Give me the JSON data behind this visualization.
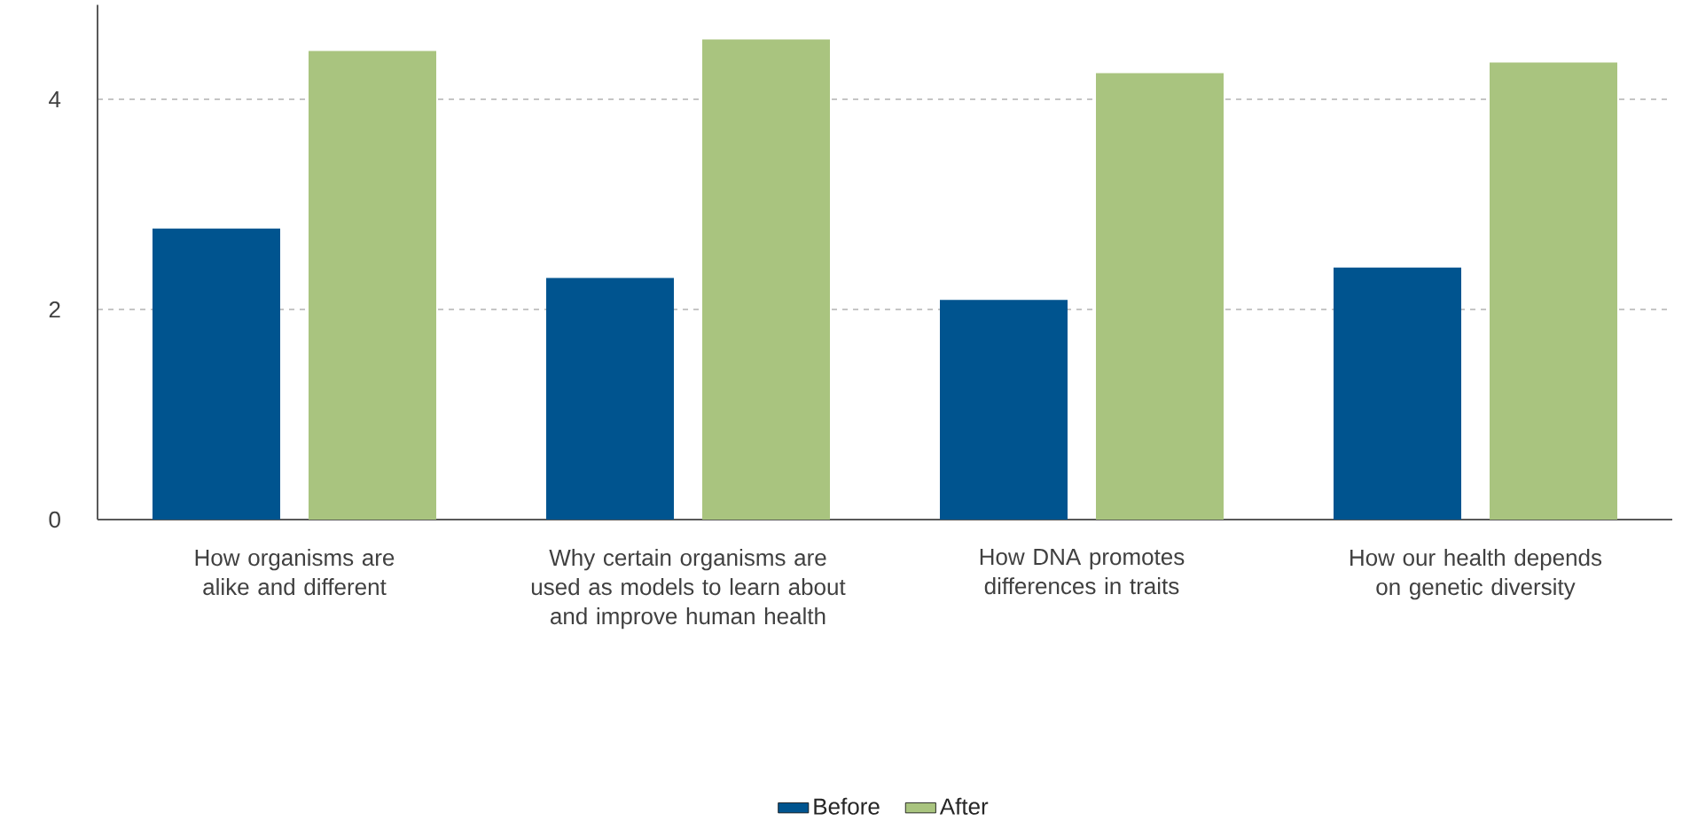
{
  "chart_data": {
    "type": "bar",
    "categories": [
      "How organisms are alike and different",
      "Why certain organisms are used as models to learn about and improve human health",
      "How DNA promotes differences in traits",
      "How our health depends on genetic diversity"
    ],
    "series": [
      {
        "name": "Before",
        "color": "#00548f",
        "values": [
          2.77,
          2.3,
          2.09,
          2.4
        ]
      },
      {
        "name": "After",
        "color": "#a9c47f",
        "values": [
          4.46,
          4.57,
          4.25,
          4.35
        ]
      }
    ],
    "ylim": [
      0,
      4.9
    ],
    "yticks": [
      0,
      2,
      4
    ],
    "grid": "y",
    "legend": "bottom"
  }
}
